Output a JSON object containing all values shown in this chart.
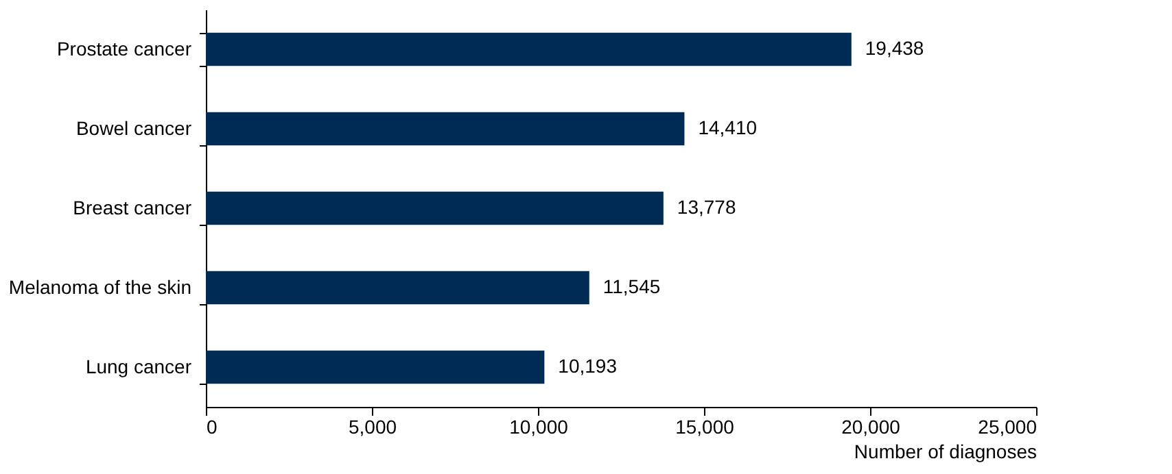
{
  "chart_data": {
    "type": "bar",
    "orientation": "horizontal",
    "xlabel": "Number of diagnoses",
    "categories": [
      "Prostate cancer",
      "Bowel cancer",
      "Breast cancer",
      "Melanoma of the skin",
      "Lung cancer"
    ],
    "values": [
      19438,
      14410,
      13778,
      11545,
      10193
    ],
    "value_labels": [
      "19,438",
      "14,410",
      "13,778",
      "11,545",
      "10,193"
    ],
    "color": "#002b54",
    "xlim": [
      0,
      25000
    ],
    "xticks": [
      0,
      {
        "value": 5000,
        "label": "5,000"
      },
      {
        "value": 10000,
        "label": "10,000"
      },
      {
        "value": 15000,
        "label": "15,000"
      },
      {
        "value": 20000,
        "label": "20,000"
      },
      {
        "value": 25000,
        "label": "25,000"
      }
    ]
  }
}
